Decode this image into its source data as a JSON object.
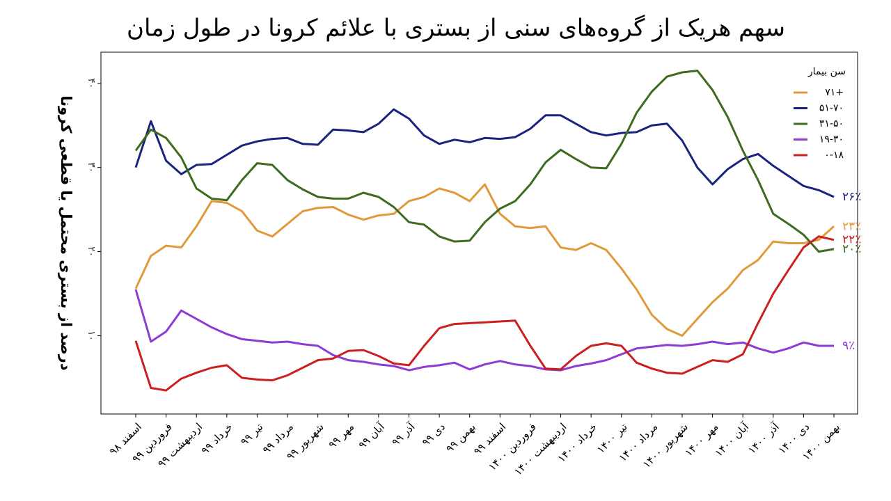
{
  "chart_data": {
    "type": "line",
    "title": "سهم هریک از گروه‌های سنی از بستری با علائم کرونا در طول زمان",
    "y_label": "درصد از بستری محتمل یا قطعی کرونا",
    "legend_title": "سن بیمار",
    "legend": "top-right",
    "categories": [
      "اسفند ۹۸",
      null,
      "فروردین ۹۹",
      null,
      "اردیبهشت ۹۹",
      null,
      "خرداد ۹۹",
      null,
      "تیر ۹۹",
      null,
      "مرداد ۹۹",
      null,
      "شهریور ۹۹",
      null,
      "مهر ۹۹",
      null,
      "آبان ۹۹",
      null,
      "آذر ۹۹",
      null,
      "دی ۹۹",
      null,
      "بهمن ۹۹",
      null,
      "اسفند ۹۹",
      null,
      "فروردین ۱۴۰۰",
      null,
      "اردیبهشت ۱۴۰۰",
      null,
      "خرداد ۱۴۰۰",
      null,
      "تیر ۱۴۰۰",
      null,
      "مرداد ۱۴۰۰",
      null,
      "شهریور ۱۴۰۰",
      null,
      "مهر ۱۴۰۰",
      null,
      "آبان ۱۴۰۰",
      null,
      "آذر ۱۴۰۰",
      null,
      "دی ۱۴۰۰",
      null,
      "بهمن ۱۴۰۰"
    ],
    "ylim": [
      0.7,
      43.7
    ],
    "yticks": [
      {
        "value": 10,
        "label": "۱۰"
      },
      {
        "value": 20,
        "label": "۲۰"
      },
      {
        "value": 30,
        "label": "۳۰"
      },
      {
        "value": 40,
        "label": "۴۰"
      }
    ],
    "series": [
      {
        "name": "۷۱+",
        "color": "#e09a3c",
        "end_label": "۲۳٪",
        "values": [
          15.6,
          19.5,
          20.7,
          20.5,
          23,
          26,
          25.8,
          24.8,
          22.5,
          21.8,
          23.3,
          24.8,
          25.2,
          25.3,
          24.4,
          23.8,
          24.3,
          24.5,
          26,
          26.5,
          27.5,
          27,
          26,
          28,
          24.5,
          23,
          22.8,
          23,
          20.5,
          20.2,
          21,
          20.2,
          18,
          15.5,
          12.5,
          10.8,
          10,
          12,
          14,
          15.6,
          17.8,
          19,
          21.2,
          21,
          21,
          21.4,
          23
        ]
      },
      {
        "name": "۵۱-۷۰",
        "color": "#1a237e",
        "end_label": "۲۶٪",
        "values": [
          30,
          35.5,
          30.8,
          29.2,
          30.3,
          30.4,
          31.5,
          32.6,
          33.1,
          33.4,
          33.5,
          32.8,
          32.7,
          34.5,
          34.4,
          34.2,
          35.2,
          36.9,
          35.8,
          33.8,
          32.8,
          33.3,
          33,
          33.5,
          33.4,
          33.6,
          34.6,
          36.2,
          36.2,
          35.2,
          34.2,
          33.8,
          34.1,
          34.2,
          35,
          35.2,
          33.2,
          30,
          28,
          29.8,
          31,
          31.6,
          30.2,
          29,
          27.8,
          27.3,
          26.5
        ]
      },
      {
        "name": "۳۱-۵۰",
        "color": "#3e6b1f",
        "end_label": "۲۰٪",
        "values": [
          32,
          34.5,
          33.5,
          31.2,
          27.5,
          26.3,
          26.1,
          28.5,
          30.5,
          30.3,
          28.5,
          27.4,
          26.5,
          26.3,
          26.3,
          27,
          26.5,
          25.3,
          23.5,
          23.2,
          21.8,
          21.2,
          21.3,
          23.5,
          25.1,
          26,
          28,
          30.6,
          32.1,
          31,
          30,
          29.9,
          32.8,
          36.5,
          39,
          40.8,
          41.3,
          41.5,
          39.2,
          36,
          32,
          28.5,
          24.5,
          23.3,
          22,
          20,
          20.3
        ]
      },
      {
        "name": "۱۹-۳۰",
        "color": "#8e3bd6",
        "end_label": "۹٪",
        "values": [
          15.5,
          9.3,
          10.5,
          13,
          12,
          11,
          10.2,
          9.6,
          9.4,
          9.2,
          9.3,
          9,
          8.8,
          7.7,
          7.1,
          6.9,
          6.6,
          6.4,
          5.9,
          6.3,
          6.5,
          6.8,
          6,
          6.6,
          7,
          6.6,
          6.4,
          6,
          5.9,
          6.4,
          6.7,
          7.1,
          7.8,
          8.5,
          8.7,
          8.9,
          8.8,
          9,
          9.3,
          9,
          9.2,
          8.5,
          8,
          8.5,
          9.2,
          8.8,
          8.8
        ]
      },
      {
        "name": "۰-۱۸",
        "color": "#cc1f1f",
        "end_label": "۲۲٪",
        "values": [
          9.4,
          3.8,
          3.5,
          4.9,
          5.6,
          6.2,
          6.5,
          5,
          4.8,
          4.7,
          5.3,
          6.2,
          7.1,
          7.3,
          8.2,
          8.3,
          7.6,
          6.7,
          6.5,
          8.8,
          10.9,
          11.4,
          11.5,
          11.6,
          11.7,
          11.8,
          8.8,
          6.1,
          6,
          7.6,
          8.8,
          9.1,
          8.8,
          6.8,
          6.1,
          5.6,
          5.5,
          6.3,
          7.1,
          6.9,
          7.8,
          11.5,
          15,
          17.8,
          20.5,
          21.8,
          21.4
        ]
      }
    ]
  }
}
